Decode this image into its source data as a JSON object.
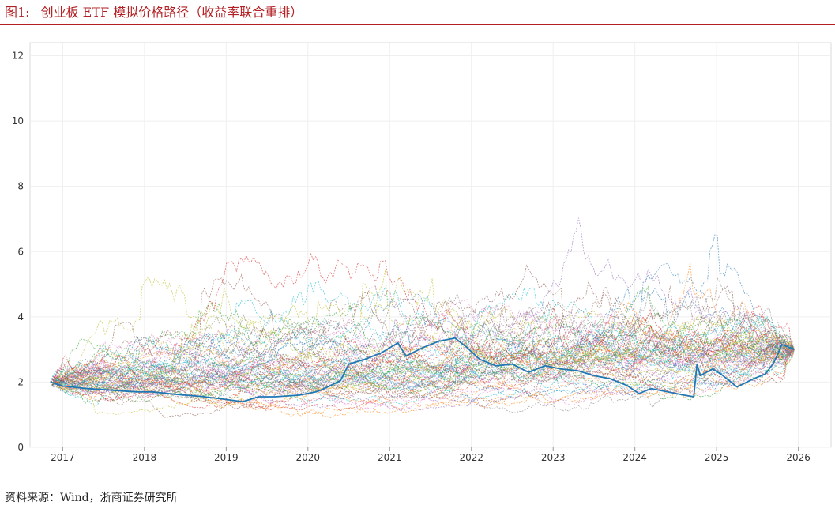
{
  "figure": {
    "number": "图1:",
    "title": "创业板 ETF 模拟价格路径（收益率联合重排）"
  },
  "source": "资料来源：Wind，浙商证券研究所",
  "colors": {
    "accent": "#b21f24",
    "highlight_path": "#1f77b4",
    "palette": [
      "#1f77b4",
      "#ff7f0e",
      "#2ca02c",
      "#d62728",
      "#9467bd",
      "#8c564b",
      "#e377c2",
      "#7f7f7f",
      "#bcbd22",
      "#17becf"
    ]
  },
  "chart_data": {
    "type": "line",
    "title": "",
    "xlabel": "",
    "ylabel": "",
    "xlim": [
      2016.6,
      2026.4
    ],
    "ylim": [
      0,
      12.4
    ],
    "x_ticks": [
      "2017",
      "2018",
      "2019",
      "2020",
      "2021",
      "2022",
      "2023",
      "2024",
      "2025",
      "2026"
    ],
    "y_ticks": [
      "0",
      "2",
      "4",
      "6",
      "8",
      "10",
      "12"
    ],
    "grid": true,
    "legend": "none",
    "simulated_path_style": "dashed thin lines, many colors",
    "endpoint_value": 3.0,
    "highlighted_path": {
      "style": "solid blue",
      "x": [
        2016.85,
        2017.0,
        2017.3,
        2017.6,
        2017.9,
        2018.1,
        2018.4,
        2018.7,
        2018.9,
        2019.05,
        2019.2,
        2019.4,
        2019.6,
        2019.9,
        2020.1,
        2020.2,
        2020.4,
        2020.5,
        2020.7,
        2020.9,
        2021.1,
        2021.2,
        2021.4,
        2021.6,
        2021.8,
        2021.95,
        2022.1,
        2022.3,
        2022.5,
        2022.7,
        2022.9,
        2023.1,
        2023.3,
        2023.5,
        2023.7,
        2023.9,
        2024.05,
        2024.2,
        2024.4,
        2024.6,
        2024.72,
        2024.76,
        2024.8,
        2024.95,
        2025.05,
        2025.25,
        2025.45,
        2025.6,
        2025.7,
        2025.8,
        2025.95
      ],
      "y": [
        2.0,
        1.88,
        1.8,
        1.75,
        1.7,
        1.7,
        1.62,
        1.56,
        1.5,
        1.45,
        1.4,
        1.55,
        1.55,
        1.6,
        1.7,
        1.8,
        2.05,
        2.55,
        2.7,
        2.9,
        3.2,
        2.8,
        3.05,
        3.25,
        3.35,
        3.05,
        2.7,
        2.5,
        2.55,
        2.3,
        2.5,
        2.4,
        2.35,
        2.2,
        2.1,
        1.9,
        1.65,
        1.8,
        1.7,
        1.6,
        1.55,
        2.55,
        2.2,
        2.4,
        2.25,
        1.85,
        2.1,
        2.25,
        2.6,
        3.15,
        3.0
      ]
    }
  }
}
